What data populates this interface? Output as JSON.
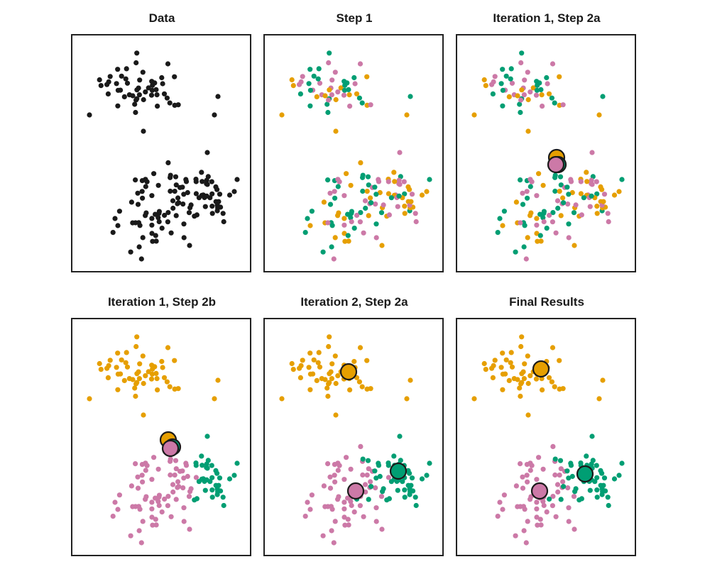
{
  "figure": {
    "colors": {
      "unassigned": "#1a1a1a",
      "cluster_a": "#E69F00",
      "cluster_b": "#CC79A7",
      "cluster_c": "#009E73",
      "centroid_stroke": "#1a1a1a"
    },
    "panels": [
      {
        "title": "Data",
        "mode": "data"
      },
      {
        "title": "Step 1",
        "mode": "random"
      },
      {
        "title": "Iteration 1, Step 2a",
        "mode": "random"
      },
      {
        "title": "Iteration 1, Step 2b",
        "mode": "iter1"
      },
      {
        "title": "Iteration 2, Step 2a",
        "mode": "iter2"
      },
      {
        "title": "Final Results",
        "mode": "final"
      }
    ]
  }
}
